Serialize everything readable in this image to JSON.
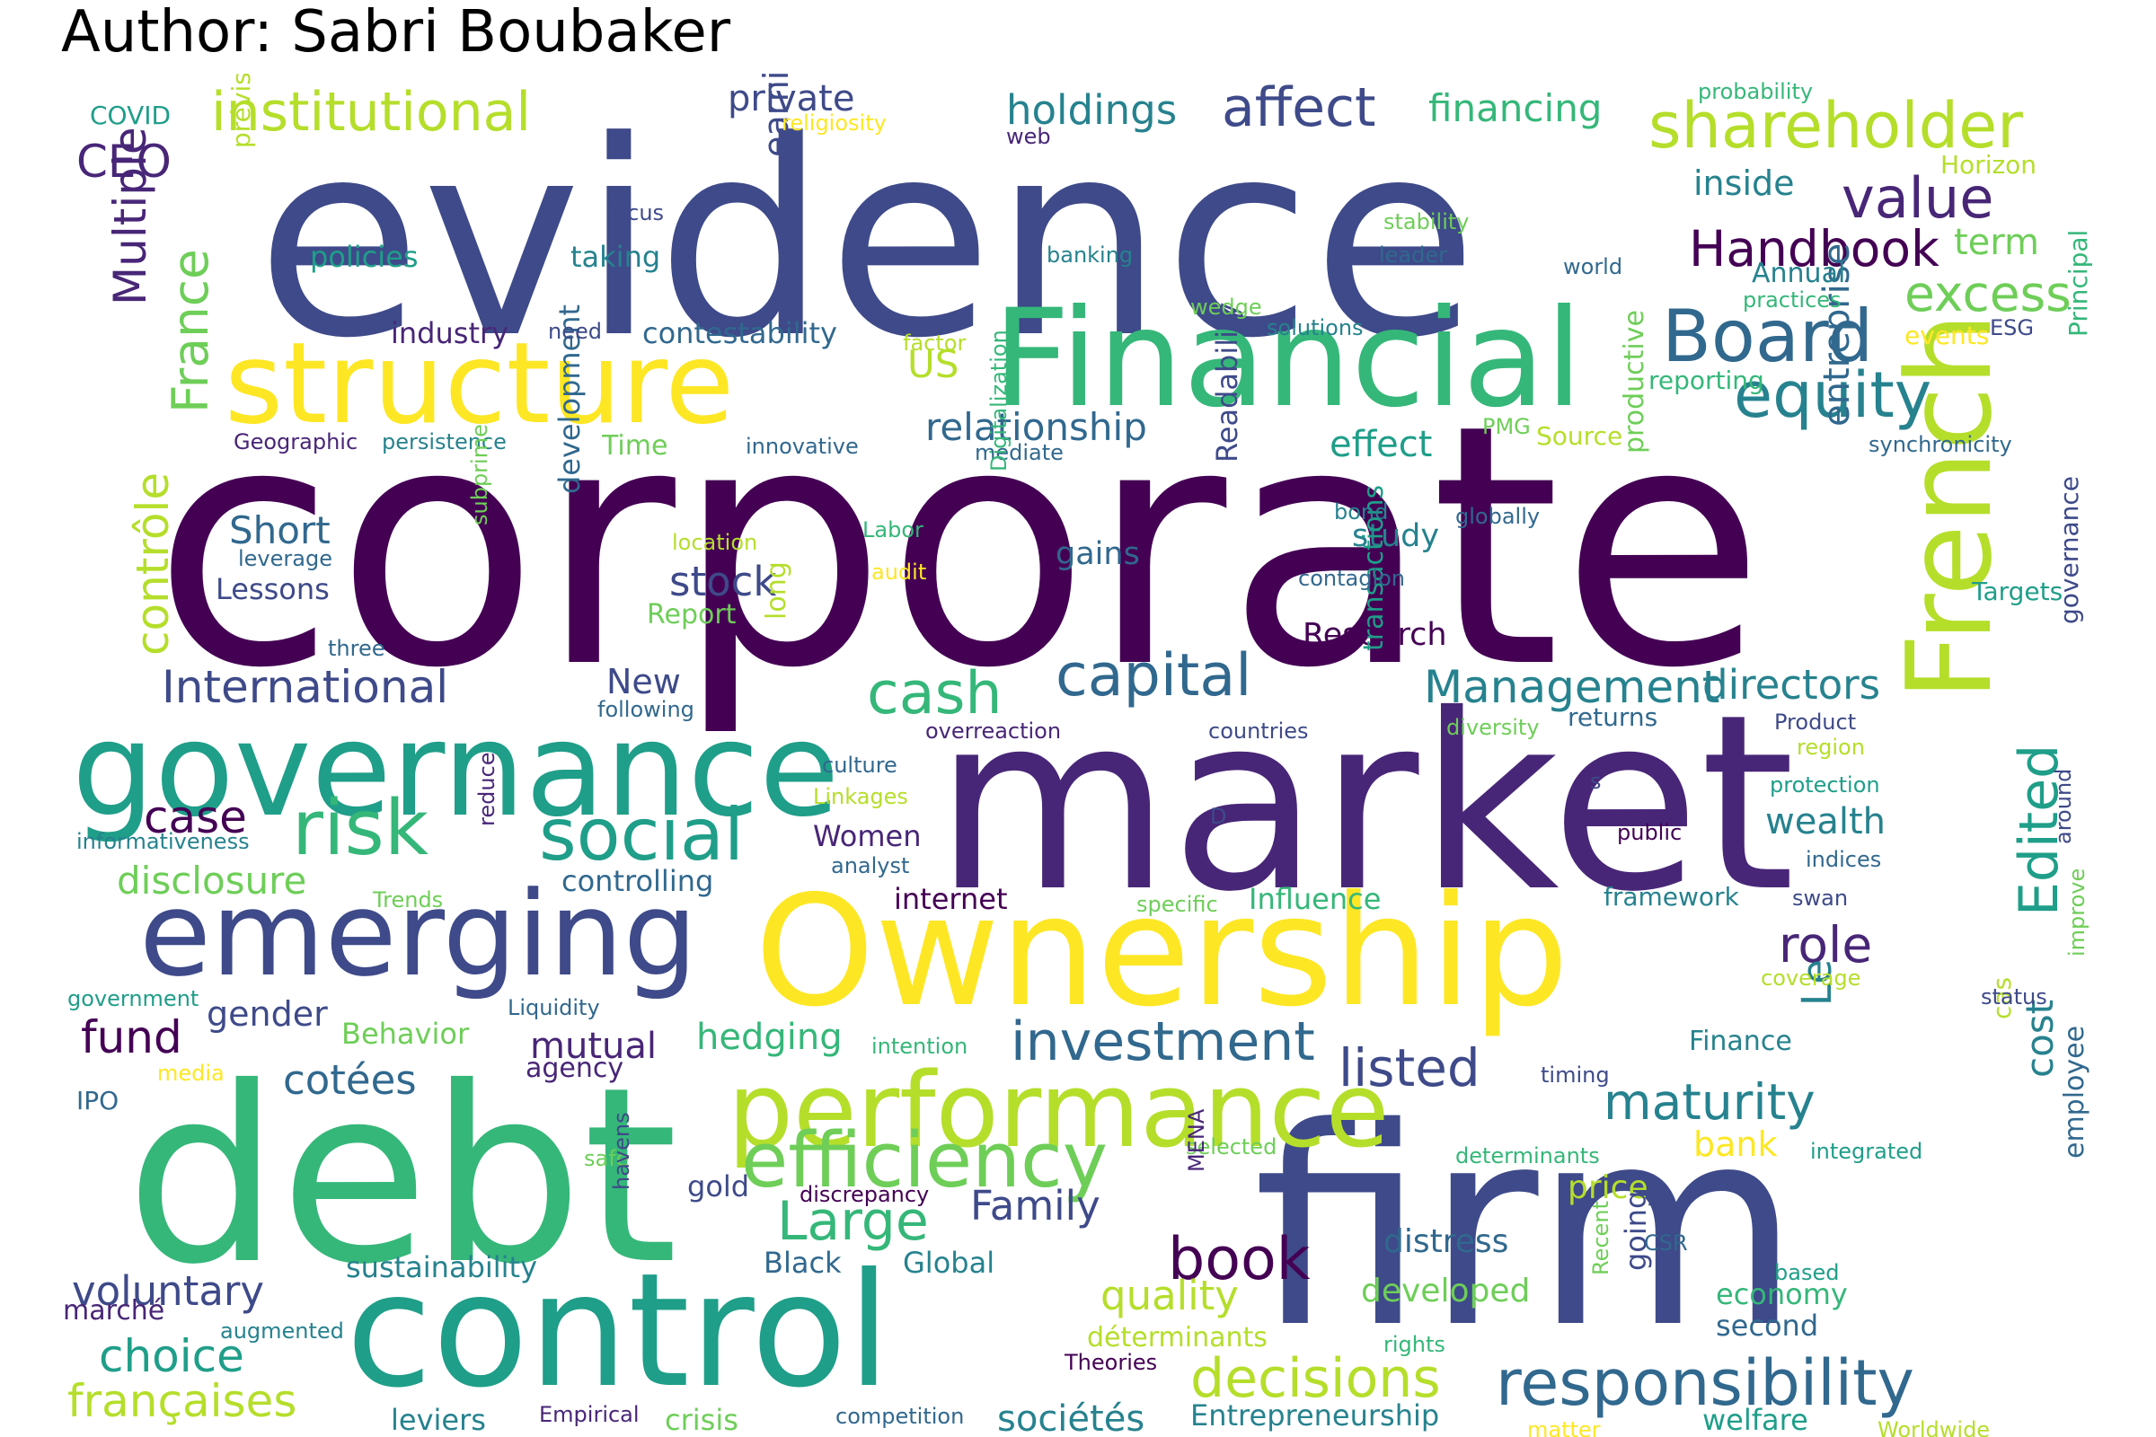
{
  "title": "Author: Sabri Boubaker",
  "palette": {
    "darkest": "#440154",
    "dark_purple": "#482677",
    "indigo": "#3e4a89",
    "blue": "#31688e",
    "teal": "#26828e",
    "green_teal": "#1f9e89",
    "green": "#35b779",
    "light_green": "#6ece58",
    "lime": "#b5de2b",
    "yellow": "#fde725"
  },
  "words": [
    {
      "text": "evidence",
      "color": "#3e4a89"
    },
    {
      "text": "corporate",
      "color": "#440154"
    },
    {
      "text": "market",
      "color": "#482677"
    },
    {
      "text": "firm",
      "color": "#3e4a89"
    },
    {
      "text": "debt",
      "color": "#35b779"
    },
    {
      "text": "control",
      "color": "#1f9e89"
    },
    {
      "text": "Ownership",
      "color": "#fde725"
    },
    {
      "text": "governance",
      "color": "#1f9e89"
    },
    {
      "text": "structure",
      "color": "#fde725"
    },
    {
      "text": "Financial",
      "color": "#35b779"
    },
    {
      "text": "emerging",
      "color": "#3e4a89"
    },
    {
      "text": "performance",
      "color": "#b5de2b"
    },
    {
      "text": "French",
      "color": "#b5de2b"
    },
    {
      "text": "efficiency",
      "color": "#6ece58"
    },
    {
      "text": "responsibility",
      "color": "#31688e"
    },
    {
      "text": "shareholder",
      "color": "#b5de2b"
    },
    {
      "text": "social",
      "color": "#1f9e89"
    },
    {
      "text": "risk",
      "color": "#35b779"
    },
    {
      "text": "Board",
      "color": "#31688e"
    },
    {
      "text": "equity",
      "color": "#26828e"
    },
    {
      "text": "institutional",
      "color": "#b5de2b"
    },
    {
      "text": "capital",
      "color": "#31688e"
    },
    {
      "text": "cash",
      "color": "#35b779"
    },
    {
      "text": "International",
      "color": "#3e4a89"
    },
    {
      "text": "decisions",
      "color": "#b5de2b"
    },
    {
      "text": "Management",
      "color": "#26828e"
    },
    {
      "text": "Large",
      "color": "#35b779"
    },
    {
      "text": "investment",
      "color": "#31688e"
    },
    {
      "text": "affect",
      "color": "#3e4a89"
    },
    {
      "text": "book",
      "color": "#440154"
    },
    {
      "text": "value",
      "color": "#482677"
    },
    {
      "text": "Handbook",
      "color": "#440154"
    },
    {
      "text": "excess",
      "color": "#6ece58"
    },
    {
      "text": "listed",
      "color": "#3e4a89"
    },
    {
      "text": "maturity",
      "color": "#26828e"
    },
    {
      "text": "role",
      "color": "#482677"
    },
    {
      "text": "Edited",
      "color": "#1f9e89"
    },
    {
      "text": "France",
      "color": "#6ece58"
    },
    {
      "text": "contrôle",
      "color": "#b5de2b"
    },
    {
      "text": "françaises",
      "color": "#b5de2b"
    },
    {
      "text": "choice",
      "color": "#1f9e89"
    },
    {
      "text": "voluntary",
      "color": "#3e4a89"
    },
    {
      "text": "directors",
      "color": "#26828e"
    },
    {
      "text": "quality",
      "color": "#b5de2b"
    },
    {
      "text": "stock",
      "color": "#3e4a89"
    },
    {
      "text": "fund",
      "color": "#440154"
    },
    {
      "text": "disclosure",
      "color": "#6ece58"
    },
    {
      "text": "cotées",
      "color": "#31688e"
    },
    {
      "text": "hedging",
      "color": "#35b779"
    },
    {
      "text": "mutual",
      "color": "#482677"
    },
    {
      "text": "Family",
      "color": "#3e4a89"
    },
    {
      "text": "case",
      "color": "#440154"
    },
    {
      "text": "CEO",
      "color": "#482677"
    },
    {
      "text": "Multiple",
      "color": "#482677"
    },
    {
      "text": "holdings",
      "color": "#26828e"
    },
    {
      "text": "financing",
      "color": "#35b779"
    },
    {
      "text": "private",
      "color": "#3e4a89"
    },
    {
      "text": "relationship",
      "color": "#31688e"
    },
    {
      "text": "effect",
      "color": "#1f9e89"
    },
    {
      "text": "wealth",
      "color": "#26828e"
    },
    {
      "text": "Le",
      "color": "#26828e"
    },
    {
      "text": "cost",
      "color": "#26828e"
    },
    {
      "text": "US",
      "color": "#b5de2b"
    },
    {
      "text": "term",
      "color": "#6ece58"
    },
    {
      "text": "inside",
      "color": "#26828e"
    },
    {
      "text": "Short",
      "color": "#31688e"
    },
    {
      "text": "gender",
      "color": "#3e4a89"
    },
    {
      "text": "sociétés",
      "color": "#26828e"
    },
    {
      "text": "Entrepreneurship",
      "color": "#26828e"
    },
    {
      "text": "entreprise",
      "color": "#31688e"
    },
    {
      "text": "developed",
      "color": "#6ece58"
    },
    {
      "text": "distress",
      "color": "#31688e"
    },
    {
      "text": "bank",
      "color": "#fde725"
    },
    {
      "text": "price",
      "color": "#b5de2b"
    },
    {
      "text": "New",
      "color": "#3e4a89"
    },
    {
      "text": "gains",
      "color": "#31688e"
    },
    {
      "text": "study",
      "color": "#26828e"
    },
    {
      "text": "Research",
      "color": "#440154"
    },
    {
      "text": "contestability",
      "color": "#31688e"
    },
    {
      "text": "industry",
      "color": "#482677"
    },
    {
      "text": "policies",
      "color": "#1f9e89"
    },
    {
      "text": "taking",
      "color": "#26828e"
    },
    {
      "text": "earnings",
      "color": "#3e4a89"
    },
    {
      "text": "Lessons",
      "color": "#3e4a89"
    },
    {
      "text": "internet",
      "color": "#440154"
    },
    {
      "text": "Influence",
      "color": "#35b779"
    },
    {
      "text": "Women",
      "color": "#482677"
    },
    {
      "text": "controlling",
      "color": "#31688e"
    },
    {
      "text": "Behavior",
      "color": "#6ece58"
    },
    {
      "text": "agency",
      "color": "#482677"
    },
    {
      "text": "gold",
      "color": "#3e4a89"
    },
    {
      "text": "Global",
      "color": "#26828e"
    },
    {
      "text": "Black",
      "color": "#31688e"
    },
    {
      "text": "sustainability",
      "color": "#26828e"
    },
    {
      "text": "marché",
      "color": "#482677"
    },
    {
      "text": "leviers",
      "color": "#26828e"
    },
    {
      "text": "crisis",
      "color": "#6ece58"
    },
    {
      "text": "welfare",
      "color": "#1f9e89"
    },
    {
      "text": "economy",
      "color": "#35b779"
    },
    {
      "text": "second",
      "color": "#31688e"
    },
    {
      "text": "going",
      "color": "#3e4a89"
    },
    {
      "text": "déterminants",
      "color": "#b5de2b"
    },
    {
      "text": "Finance",
      "color": "#26828e"
    },
    {
      "text": "employee",
      "color": "#31688e"
    },
    {
      "text": "development",
      "color": "#31688e"
    },
    {
      "text": "transactions",
      "color": "#1f9e89"
    },
    {
      "text": "Readability",
      "color": "#3e4a89"
    },
    {
      "text": "productive",
      "color": "#6ece58"
    },
    {
      "text": "Annual",
      "color": "#26828e"
    },
    {
      "text": "Horizon",
      "color": "#b5de2b"
    },
    {
      "text": "events",
      "color": "#fde725"
    },
    {
      "text": "Principal",
      "color": "#35b779"
    },
    {
      "text": "Targets",
      "color": "#1f9e89"
    },
    {
      "text": "Report",
      "color": "#6ece58"
    },
    {
      "text": "long",
      "color": "#b5de2b"
    },
    {
      "text": "returns",
      "color": "#31688e"
    },
    {
      "text": "framework",
      "color": "#26828e"
    },
    {
      "text": "IPO",
      "color": "#31688e"
    },
    {
      "text": "COVID",
      "color": "#1f9e89"
    },
    {
      "text": "prévisions",
      "color": "#b5de2b"
    },
    {
      "text": "Time",
      "color": "#6ece58"
    },
    {
      "text": "Source",
      "color": "#b5de2b"
    },
    {
      "text": "reporting",
      "color": "#35b779"
    },
    {
      "text": "governance",
      "color": "#3e4a89"
    },
    {
      "text": "cas",
      "color": "#b5de2b"
    },
    {
      "text": "probability",
      "color": "#35b779"
    },
    {
      "text": "religiosity",
      "color": "#fde725"
    },
    {
      "text": "focus",
      "color": "#3e4a89"
    },
    {
      "text": "banking",
      "color": "#26828e"
    },
    {
      "text": "stability",
      "color": "#6ece58"
    },
    {
      "text": "leader",
      "color": "#31688e"
    },
    {
      "text": "world",
      "color": "#31688e"
    },
    {
      "text": "practices",
      "color": "#35b779"
    },
    {
      "text": "wedge",
      "color": "#6ece58"
    },
    {
      "text": "solutions",
      "color": "#26828e"
    },
    {
      "text": "need",
      "color": "#3e4a89"
    },
    {
      "text": "factor",
      "color": "#b5de2b"
    },
    {
      "text": "ESG",
      "color": "#3e4a89"
    },
    {
      "text": "web",
      "color": "#482677"
    },
    {
      "text": "Geographic",
      "color": "#482677"
    },
    {
      "text": "persistence",
      "color": "#26828e"
    },
    {
      "text": "innovative",
      "color": "#31688e"
    },
    {
      "text": "mediate",
      "color": "#31688e"
    },
    {
      "text": "PMG",
      "color": "#6ece58"
    },
    {
      "text": "synchronicity",
      "color": "#31688e"
    },
    {
      "text": "leverage",
      "color": "#31688e"
    },
    {
      "text": "subprime",
      "color": "#6ece58"
    },
    {
      "text": "location",
      "color": "#b5de2b"
    },
    {
      "text": "Labor",
      "color": "#35b779"
    },
    {
      "text": "audit",
      "color": "#fde725"
    },
    {
      "text": "Digitalization",
      "color": "#35b779"
    },
    {
      "text": "bond",
      "color": "#26828e"
    },
    {
      "text": "globally",
      "color": "#31688e"
    },
    {
      "text": "contagion",
      "color": "#31688e"
    },
    {
      "text": "three",
      "color": "#31688e"
    },
    {
      "text": "following",
      "color": "#31688e"
    },
    {
      "text": "overreaction",
      "color": "#482677"
    },
    {
      "text": "countries",
      "color": "#3e4a89"
    },
    {
      "text": "diversity",
      "color": "#6ece58"
    },
    {
      "text": "Product",
      "color": "#3e4a89"
    },
    {
      "text": "region",
      "color": "#b5de2b"
    },
    {
      "text": "culture",
      "color": "#31688e"
    },
    {
      "text": "Linkages",
      "color": "#b5de2b"
    },
    {
      "text": "s",
      "color": "#3e4a89"
    },
    {
      "text": "D",
      "color": "#3e4a89"
    },
    {
      "text": "protection",
      "color": "#1f9e89"
    },
    {
      "text": "informativeness",
      "color": "#26828e"
    },
    {
      "text": "analyst",
      "color": "#31688e"
    },
    {
      "text": "public",
      "color": "#440154"
    },
    {
      "text": "indices",
      "color": "#31688e"
    },
    {
      "text": "Trends",
      "color": "#6ece58"
    },
    {
      "text": "reduce",
      "color": "#482677"
    },
    {
      "text": "specific",
      "color": "#6ece58"
    },
    {
      "text": "swan",
      "color": "#3e4a89"
    },
    {
      "text": "around",
      "color": "#3e4a89"
    },
    {
      "text": "government",
      "color": "#1f9e89"
    },
    {
      "text": "Liquidity",
      "color": "#31688e"
    },
    {
      "text": "coverage",
      "color": "#b5de2b"
    },
    {
      "text": "status",
      "color": "#3e4a89"
    },
    {
      "text": "improve",
      "color": "#6ece58"
    },
    {
      "text": "intention",
      "color": "#35b779"
    },
    {
      "text": "media",
      "color": "#fde725"
    },
    {
      "text": "timing",
      "color": "#3e4a89"
    },
    {
      "text": "safe",
      "color": "#6ece58"
    },
    {
      "text": "selected",
      "color": "#6ece58"
    },
    {
      "text": "determinants",
      "color": "#35b779"
    },
    {
      "text": "integrated",
      "color": "#1f9e89"
    },
    {
      "text": "discrepancy",
      "color": "#440154"
    },
    {
      "text": "MENA",
      "color": "#482677"
    },
    {
      "text": "havens",
      "color": "#3e4a89"
    },
    {
      "text": "CSR",
      "color": "#31688e"
    },
    {
      "text": "Recent",
      "color": "#6ece58"
    },
    {
      "text": "based",
      "color": "#1f9e89"
    },
    {
      "text": "augmented",
      "color": "#26828e"
    },
    {
      "text": "rights",
      "color": "#35b779"
    },
    {
      "text": "Theories",
      "color": "#440154"
    },
    {
      "text": "Empirical",
      "color": "#482677"
    },
    {
      "text": "competition",
      "color": "#31688e"
    },
    {
      "text": "matter",
      "color": "#fde725"
    },
    {
      "text": "Worldwide",
      "color": "#b5de2b"
    }
  ]
}
